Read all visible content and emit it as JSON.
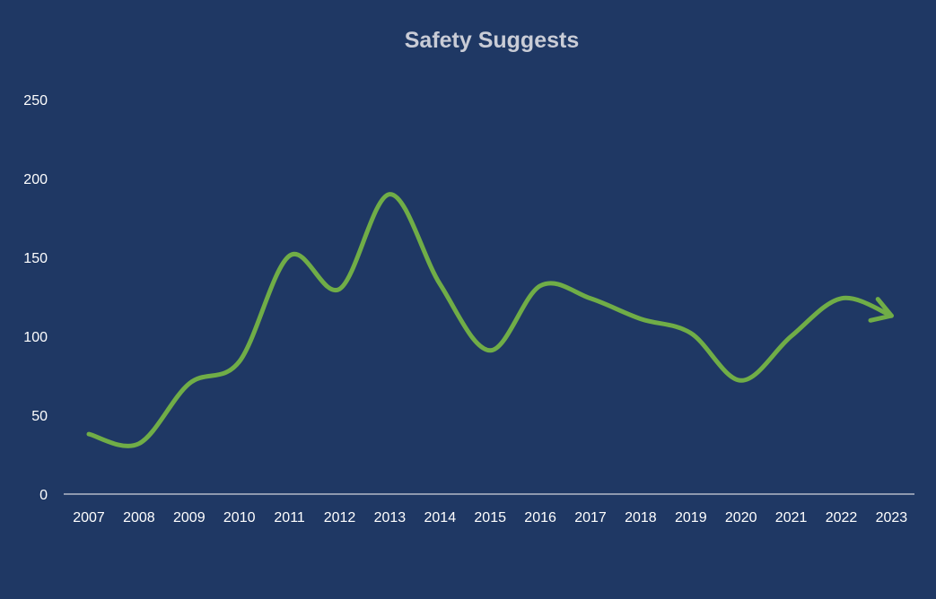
{
  "chart_data": {
    "type": "line",
    "title": "Safety Suggests",
    "xlabel": "",
    "ylabel": "",
    "categories": [
      "2007",
      "2008",
      "2009",
      "2010",
      "2011",
      "2012",
      "2013",
      "2014",
      "2015",
      "2016",
      "2017",
      "2018",
      "2019",
      "2020",
      "2021",
      "2022",
      "2023"
    ],
    "y_ticks": [
      "0",
      "50",
      "100",
      "150",
      "200",
      "250"
    ],
    "ylim": [
      0,
      250
    ],
    "series": [
      {
        "values": [
          38,
          32,
          70,
          84,
          151,
          130,
          190,
          133,
          91,
          132,
          124,
          111,
          102,
          72,
          100,
          124,
          113
        ]
      }
    ],
    "grid": false,
    "legend": "none",
    "end_marker": "arrow",
    "colors": {
      "background": "#1f3864",
      "line": "#70ad47",
      "text": "#ffffff",
      "title": "#c9ccd6",
      "axis": "#b4b9c8"
    }
  }
}
